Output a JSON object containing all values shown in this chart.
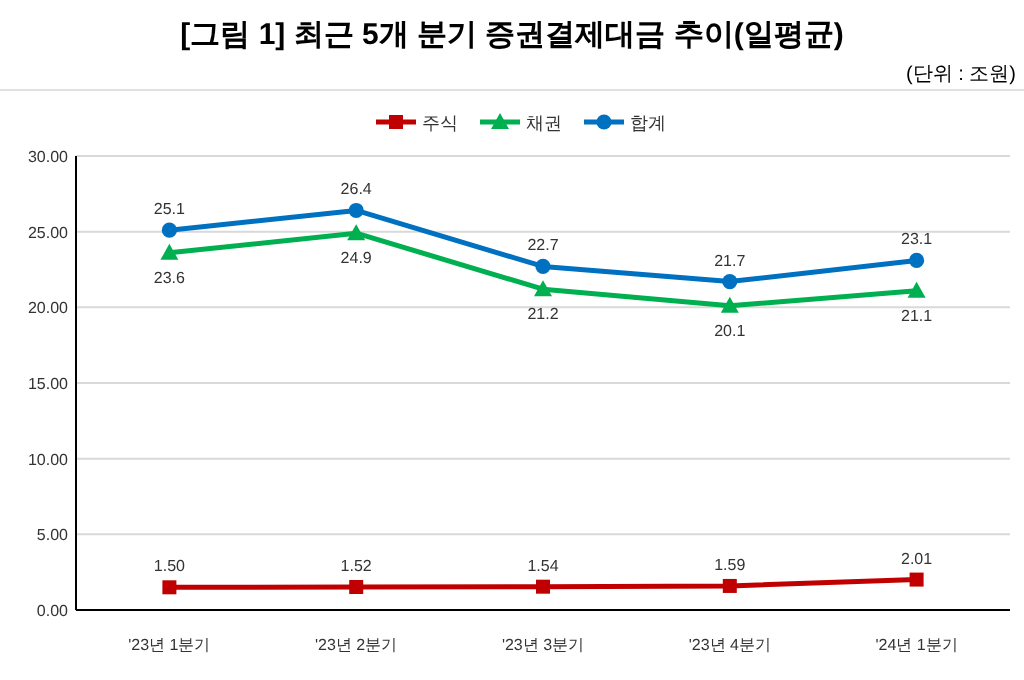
{
  "chart_data": {
    "type": "line",
    "title": "[그림 1] 최근 5개 분기 증권결제대금 추이(일평균)",
    "subtitle": "(단위 : 조원)",
    "categories": [
      "'23년 1분기",
      "'23년 2분기",
      "'23년 3분기",
      "'23년 4분기",
      "'24년 1분기"
    ],
    "series": [
      {
        "name": "주식",
        "color": "#c00000",
        "marker": "square",
        "values": [
          1.5,
          1.52,
          1.54,
          1.59,
          2.01
        ],
        "value_labels": [
          "1.50",
          "1.52",
          "1.54",
          "1.59",
          "2.01"
        ]
      },
      {
        "name": "채권",
        "color": "#00b050",
        "marker": "triangle",
        "values": [
          23.6,
          24.9,
          21.2,
          20.1,
          21.1
        ],
        "value_labels": [
          "23.6",
          "24.9",
          "21.2",
          "20.1",
          "21.1"
        ]
      },
      {
        "name": "합계",
        "color": "#0070c0",
        "marker": "circle",
        "values": [
          25.1,
          26.4,
          22.7,
          21.7,
          23.1
        ],
        "value_labels": [
          "25.1",
          "26.4",
          "22.7",
          "21.7",
          "23.1"
        ]
      }
    ],
    "ylim": [
      0,
      30
    ],
    "yticks": [
      {
        "value": 0,
        "label": "0.00"
      },
      {
        "value": 5,
        "label": "5.00"
      },
      {
        "value": 10,
        "label": "10.00"
      },
      {
        "value": 15,
        "label": "15.00"
      },
      {
        "value": 20,
        "label": "20.00"
      },
      {
        "value": 25,
        "label": "25.00"
      },
      {
        "value": 30,
        "label": "30.00"
      }
    ],
    "grid": "y",
    "legend": "top",
    "line_style": "solid"
  }
}
